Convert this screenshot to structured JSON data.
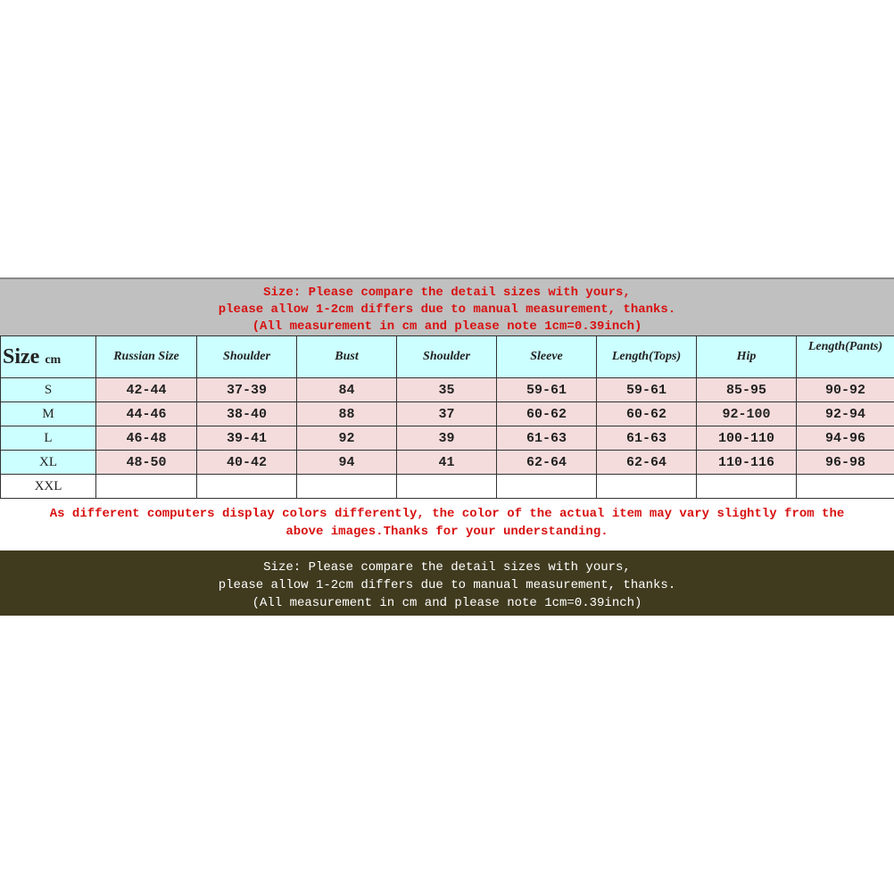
{
  "banner": {
    "lines": [
      "Size: Please compare the detail sizes with yours,",
      "please allow 1-2cm differs due to manual measurement, thanks.",
      "(All measurement in cm and please note 1cm=0.39inch)"
    ]
  },
  "table": {
    "size_label": "Size",
    "size_unit": "cm",
    "headers": [
      "Russian Size",
      "Shoulder",
      "Bust",
      "Shoulder",
      "Sleeve",
      "Length(Tops)",
      "Hip",
      "Length(Pants)"
    ],
    "rows": [
      {
        "size": "S",
        "values": [
          "42-44",
          "37-39",
          "84",
          "35",
          "59-61",
          "59-61",
          "85-95",
          "90-92"
        ]
      },
      {
        "size": "M",
        "values": [
          "44-46",
          "38-40",
          "88",
          "37",
          "60-62",
          "60-62",
          "92-100",
          "92-94"
        ]
      },
      {
        "size": "L",
        "values": [
          "46-48",
          "39-41",
          "92",
          "39",
          "61-63",
          "61-63",
          "100-110",
          "94-96"
        ]
      },
      {
        "size": "XL",
        "values": [
          "48-50",
          "40-42",
          "94",
          "41",
          "62-64",
          "62-64",
          "110-116",
          "96-98"
        ]
      },
      {
        "size": "XXL",
        "values": [
          "",
          "",
          "",
          "",
          "",
          "",
          "",
          ""
        ]
      }
    ]
  },
  "note": {
    "lines": [
      "As different computers display colors differently, the color of the actual item may vary slightly from the",
      "above images.Thanks for your understanding."
    ]
  },
  "footer": {
    "lines": [
      "Size: Please compare the detail sizes with yours,",
      "please allow 1-2cm differs due to manual measurement, thanks.",
      "(All measurement in cm and please note 1cm=0.39inch)"
    ]
  },
  "colors": {
    "header_cyan": "#ccffff",
    "cell_pink": "#f5dcdc",
    "red_text": "#d81010",
    "dark_band": "#403b1f",
    "banner_gray": "#c0c0c0"
  }
}
